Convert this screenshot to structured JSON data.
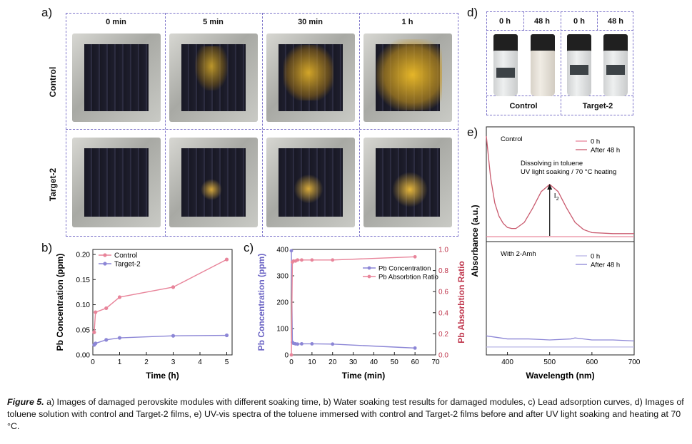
{
  "figure": {
    "panel_labels": {
      "a": "a)",
      "b": "b)",
      "c": "c)",
      "d": "d)",
      "e": "e)"
    },
    "panel_a": {
      "columns": [
        "0 min",
        "5 min",
        "30 min",
        "1 h"
      ],
      "rows": [
        "Control",
        "Target-2"
      ]
    },
    "panel_d": {
      "columns": [
        "0 h",
        "48 h",
        "0 h",
        "48 h"
      ],
      "groups": [
        "Control",
        "Target-2"
      ]
    },
    "caption": {
      "prefix": "Figure 5.",
      "text": " a) Images of damaged perovskite modules with different soaking time, b) Water soaking test results for damaged modules, c) Lead adsorption curves, d) Images of toluene solution with control and Target-2 films, e) UV-vis spectra of the toluene immersed with control and Target-2 films before and after UV light soaking and heating at 70 °C."
    }
  },
  "chart_data": [
    {
      "type": "line",
      "panel": "b",
      "xlabel": "Time (h)",
      "ylabel": "Pb Concentration (ppm)",
      "xlim": [
        0,
        5.2
      ],
      "ylim": [
        0,
        0.21
      ],
      "xticks": [
        0,
        1,
        2,
        3,
        4,
        5
      ],
      "yticks": [
        0.0,
        0.05,
        0.1,
        0.15,
        0.2
      ],
      "ytick_labels": [
        "0.00",
        "0.05",
        "0.10",
        "0.15",
        "0.20"
      ],
      "legend": "top-left",
      "series": [
        {
          "name": "Control",
          "color": "#e8849a",
          "x": [
            0.05,
            0.1,
            0.5,
            1,
            3,
            5
          ],
          "y": [
            0.045,
            0.085,
            0.093,
            0.115,
            0.135,
            0.19
          ]
        },
        {
          "name": "Target-2",
          "color": "#8c86d6",
          "x": [
            0.05,
            0.1,
            0.5,
            1,
            3,
            5
          ],
          "y": [
            0.02,
            0.023,
            0.03,
            0.034,
            0.038,
            0.039
          ]
        }
      ]
    },
    {
      "type": "line",
      "panel": "c",
      "xlabel": "Time (min)",
      "ylabel": "Pb Concentration (ppm)",
      "y2label": "Pb Absorbtion Ratio",
      "xlim": [
        0,
        70
      ],
      "ylim": [
        0,
        400
      ],
      "y2lim": [
        0,
        1.0
      ],
      "xticks": [
        0,
        10,
        20,
        30,
        40,
        50,
        60,
        70
      ],
      "yticks": [
        0,
        100,
        200,
        300,
        400
      ],
      "y2ticks": [
        0.0,
        0.2,
        0.4,
        0.6,
        0.8,
        1.0
      ],
      "y2tick_labels": [
        "0.0",
        "0.2",
        "0.4",
        "0.6",
        "0.8",
        "1.0"
      ],
      "legend": "right",
      "series": [
        {
          "name": "Pb Concentration",
          "axis": "left",
          "color": "#8c86d6",
          "x": [
            0,
            0.5,
            1,
            2,
            3,
            5,
            10,
            20,
            60
          ],
          "y": [
            395,
            48,
            44,
            42,
            41,
            42,
            42,
            41,
            26
          ]
        },
        {
          "name": "Pb Absorbtion Ratio",
          "axis": "right",
          "color": "#e8849a",
          "x": [
            0,
            0.5,
            1,
            2,
            3,
            5,
            10,
            20,
            60
          ],
          "y": [
            0.0,
            0.88,
            0.89,
            0.89,
            0.9,
            0.9,
            0.9,
            0.9,
            0.93
          ]
        }
      ]
    },
    {
      "type": "line",
      "panel": "e",
      "xlabel": "Wavelength (nm)",
      "ylabel": "Absorbance (a.u.)",
      "xlim": [
        350,
        700
      ],
      "xticks": [
        400,
        500,
        600,
        700
      ],
      "subplots": [
        {
          "title": "Control",
          "annotation": [
            "Dissolving in toluene",
            "UV light soaking / 70 °C heating"
          ],
          "arrow_label": "I",
          "arrow_label_sub": "2",
          "legend": "top-right",
          "series": [
            {
              "name": "0 h",
              "color": "#e8849a",
              "x": [
                350,
                700
              ],
              "y": [
                0.02,
                0.02
              ]
            },
            {
              "name": "After 48 h",
              "color": "#c95a6e",
              "x": [
                350,
                360,
                370,
                380,
                390,
                400,
                410,
                420,
                440,
                460,
                480,
                500,
                520,
                540,
                560,
                580,
                600,
                650,
                700
              ],
              "y": [
                1.0,
                0.6,
                0.35,
                0.22,
                0.15,
                0.11,
                0.1,
                0.1,
                0.16,
                0.3,
                0.46,
                0.53,
                0.46,
                0.3,
                0.16,
                0.09,
                0.06,
                0.05,
                0.05
              ]
            }
          ]
        },
        {
          "title": "With 2-Amh",
          "legend": "top-right",
          "series": [
            {
              "name": "0 h",
              "color": "#b9b5e6",
              "x": [
                350,
                700
              ],
              "y": [
                0.05,
                0.05
              ]
            },
            {
              "name": "After 48 h",
              "color": "#8c86d6",
              "x": [
                350,
                400,
                450,
                500,
                550,
                560,
                600,
                650,
                700
              ],
              "y": [
                0.16,
                0.13,
                0.13,
                0.12,
                0.13,
                0.14,
                0.12,
                0.12,
                0.11
              ]
            }
          ]
        }
      ]
    }
  ]
}
